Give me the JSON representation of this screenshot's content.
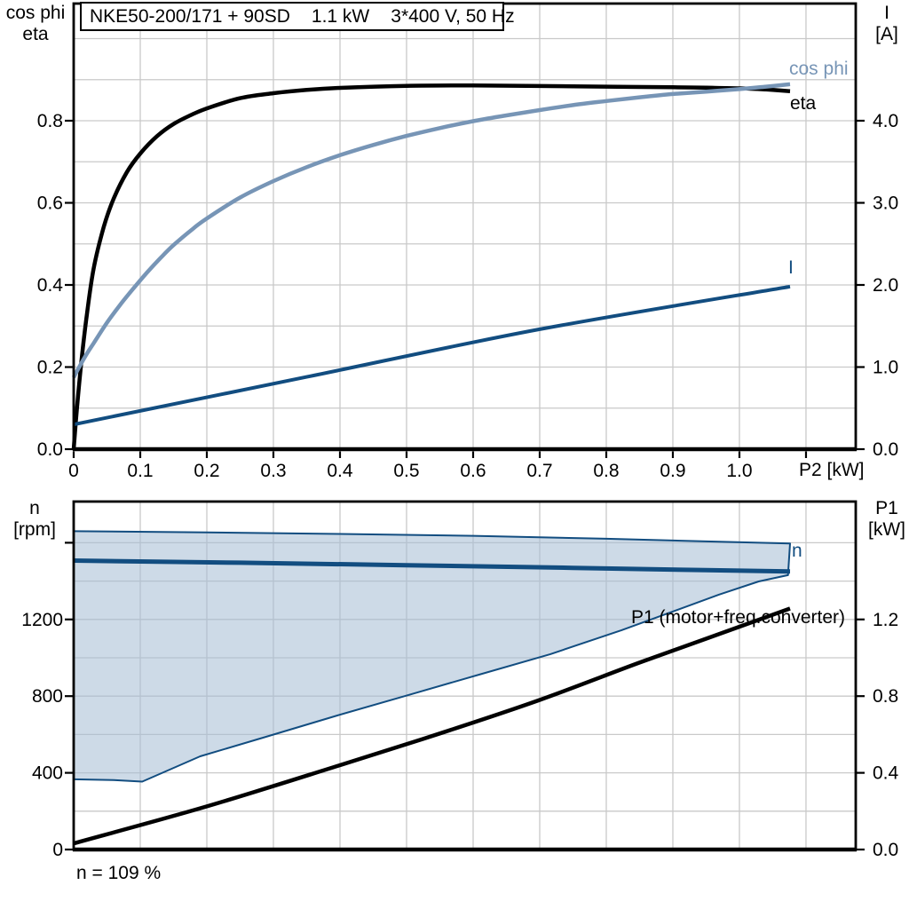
{
  "colors": {
    "black": "#000000",
    "light_blue": "#7795b6",
    "dark_blue": "#124d80",
    "area_fill": "rgba(164,187,211,0.55)",
    "gridline": "#c9c9c9",
    "background": "#ffffff"
  },
  "title_box": {
    "model": "NKE50-200/171 + 90SD",
    "power": "1.1 kW",
    "supply": "3*400 V, 50 Hz"
  },
  "axis_labels": {
    "top_left_line1": "cos phi",
    "top_left_line2": "eta",
    "top_right_line1": "I",
    "top_right_line2": "[A]",
    "top_x": "P2 [kW]",
    "bottom_left_line1": "n",
    "bottom_left_line2": "[rpm]",
    "bottom_right_line1": "P1",
    "bottom_right_line2": "[kW]"
  },
  "curve_labels": {
    "cos_phi": "cos phi",
    "eta": "eta",
    "current": "I",
    "speed": "n",
    "p1": "P1 (motor+freq.converter)"
  },
  "footnote": "n = 109 %",
  "chart_data": [
    {
      "type": "line",
      "title": "NKE50-200/171 + 90SD 1.1 kW 3*400 V, 50 Hz",
      "xlabel": "P2 [kW]",
      "ylabel_left": "cos phi / eta",
      "ylabel_right": "I [A]",
      "xlim": [
        0,
        1.175
      ],
      "ylim_left": [
        0,
        1.085
      ],
      "ylim_right": [
        0,
        5.43
      ],
      "grid": true,
      "x_ticks": [
        {
          "v": 0,
          "label": "0"
        },
        {
          "v": 0.1,
          "label": "0.1"
        },
        {
          "v": 0.2,
          "label": "0.2"
        },
        {
          "v": 0.3,
          "label": "0.3"
        },
        {
          "v": 0.4,
          "label": "0.4"
        },
        {
          "v": 0.5,
          "label": "0.5"
        },
        {
          "v": 0.6,
          "label": "0.6"
        },
        {
          "v": 0.7,
          "label": "0.7"
        },
        {
          "v": 0.8,
          "label": "0.8"
        },
        {
          "v": 0.9,
          "label": "0.9"
        },
        {
          "v": 1.0,
          "label": "1.0"
        },
        {
          "v": 1.1,
          "label": ""
        }
      ],
      "y_ticks_left": [
        {
          "v": 0,
          "label": "0.0"
        },
        {
          "v": 0.2,
          "label": "0.2"
        },
        {
          "v": 0.4,
          "label": "0.4"
        },
        {
          "v": 0.6,
          "label": "0.6"
        },
        {
          "v": 0.8,
          "label": "0.8"
        }
      ],
      "y_ticks_right": [
        {
          "v": 0,
          "label": "0.0"
        },
        {
          "v": 1,
          "label": "1.0"
        },
        {
          "v": 2,
          "label": "2.0"
        },
        {
          "v": 3,
          "label": "3.0"
        },
        {
          "v": 4,
          "label": "4.0"
        }
      ],
      "grid_v": [
        0.1,
        0.2,
        0.3,
        0.4,
        0.5,
        0.6,
        0.7,
        0.8,
        0.9,
        1.0,
        1.1
      ],
      "grid_h": [
        0.1,
        0.2,
        0.3,
        0.4,
        0.5,
        0.6,
        0.7,
        0.8,
        0.9,
        1.0
      ],
      "series": [
        {
          "name": "eta",
          "axis": "left",
          "color": "black",
          "width": 4.5,
          "smooth": true,
          "points": [
            [
              0,
              0
            ],
            [
              0.005,
              0.1
            ],
            [
              0.012,
              0.22
            ],
            [
              0.02,
              0.33
            ],
            [
              0.03,
              0.44
            ],
            [
              0.045,
              0.54
            ],
            [
              0.06,
              0.61
            ],
            [
              0.08,
              0.675
            ],
            [
              0.1,
              0.72
            ],
            [
              0.125,
              0.762
            ],
            [
              0.15,
              0.792
            ],
            [
              0.175,
              0.813
            ],
            [
              0.2,
              0.83
            ],
            [
              0.25,
              0.855
            ],
            [
              0.3,
              0.867
            ],
            [
              0.35,
              0.875
            ],
            [
              0.4,
              0.88
            ],
            [
              0.5,
              0.885
            ],
            [
              0.6,
              0.886
            ],
            [
              0.7,
              0.8845
            ],
            [
              0.8,
              0.883
            ],
            [
              0.9,
              0.8815
            ],
            [
              0.95,
              0.8805
            ],
            [
              1.0,
              0.879
            ],
            [
              1.04,
              0.876
            ],
            [
              1.076,
              0.872
            ]
          ]
        },
        {
          "name": "cos phi",
          "axis": "left",
          "color": "light_blue",
          "width": 4.5,
          "smooth": true,
          "points": [
            [
              0,
              0.175
            ],
            [
              0.01,
              0.205
            ],
            [
              0.02,
              0.233
            ],
            [
              0.03,
              0.258
            ],
            [
              0.05,
              0.308
            ],
            [
              0.07,
              0.352
            ],
            [
              0.09,
              0.392
            ],
            [
              0.11,
              0.43
            ],
            [
              0.13,
              0.465
            ],
            [
              0.15,
              0.497
            ],
            [
              0.18,
              0.538
            ],
            [
              0.2,
              0.562
            ],
            [
              0.25,
              0.613
            ],
            [
              0.3,
              0.653
            ],
            [
              0.35,
              0.687
            ],
            [
              0.4,
              0.716
            ],
            [
              0.45,
              0.741
            ],
            [
              0.5,
              0.763
            ],
            [
              0.55,
              0.782
            ],
            [
              0.6,
              0.799
            ],
            [
              0.65,
              0.813
            ],
            [
              0.7,
              0.826
            ],
            [
              0.75,
              0.838
            ],
            [
              0.8,
              0.848
            ],
            [
              0.85,
              0.857
            ],
            [
              0.9,
              0.865
            ],
            [
              0.95,
              0.871
            ],
            [
              1.0,
              0.877
            ],
            [
              1.04,
              0.883
            ],
            [
              1.076,
              0.889
            ]
          ]
        },
        {
          "name": "I",
          "axis": "right",
          "color": "dark_blue",
          "width": 4,
          "smooth": true,
          "points": [
            [
              0,
              0.3
            ],
            [
              0.35,
              0.88
            ],
            [
              0.7,
              1.46
            ],
            [
              1.076,
              1.98
            ]
          ]
        }
      ]
    },
    {
      "type": "line",
      "title": "",
      "xlabel": "",
      "ylabel_left": "n [rpm]",
      "ylabel_right": "P1 [kW]",
      "xlim": [
        0,
        1.175
      ],
      "ylim_left": [
        0,
        1815
      ],
      "ylim_right": [
        0,
        1.815
      ],
      "grid": true,
      "x_ticks": [],
      "y_ticks_left": [
        {
          "v": 0,
          "label": "0"
        },
        {
          "v": 400,
          "label": "400"
        },
        {
          "v": 800,
          "label": "800"
        },
        {
          "v": 1200,
          "label": "1200"
        },
        {
          "v": 1600,
          "label": ""
        }
      ],
      "y_ticks_right": [
        {
          "v": 0,
          "label": "0.0"
        },
        {
          "v": 0.4,
          "label": "0.4"
        },
        {
          "v": 0.8,
          "label": "0.8"
        },
        {
          "v": 1.2,
          "label": "1.2"
        }
      ],
      "grid_v": [
        0.1,
        0.2,
        0.3,
        0.4,
        0.5,
        0.6,
        0.7,
        0.8,
        0.9,
        1.0,
        1.1
      ],
      "grid_h": [
        200,
        400,
        600,
        800,
        1000,
        1200,
        1400,
        1600
      ],
      "area": {
        "name": "speed-operating-range",
        "fill": "area_fill",
        "border_color": "dark_blue",
        "border_width": 2,
        "upper": [
          [
            0,
            1660
          ],
          [
            0.2,
            1654
          ],
          [
            0.4,
            1646
          ],
          [
            0.6,
            1636
          ],
          [
            0.8,
            1621
          ],
          [
            0.95,
            1607
          ],
          [
            1.076,
            1596
          ]
        ],
        "lower": [
          [
            0,
            366
          ],
          [
            0.06,
            362
          ],
          [
            0.103,
            354
          ],
          [
            0.19,
            486
          ],
          [
            0.289,
            588
          ],
          [
            0.396,
            699
          ],
          [
            0.503,
            806
          ],
          [
            0.609,
            912
          ],
          [
            0.716,
            1019
          ],
          [
            0.823,
            1144
          ],
          [
            0.903,
            1245
          ],
          [
            0.969,
            1329
          ],
          [
            1.029,
            1398
          ],
          [
            1.073,
            1431
          ]
        ]
      },
      "series": [
        {
          "name": "n",
          "axis": "left",
          "color": "dark_blue",
          "width": 5,
          "smooth": false,
          "points": [
            [
              0,
              1507
            ],
            [
              0.25,
              1496
            ],
            [
              0.5,
              1483
            ],
            [
              0.75,
              1469
            ],
            [
              0.95,
              1457
            ],
            [
              1.076,
              1450
            ]
          ]
        },
        {
          "name": "P1 (motor+freq.converter)",
          "axis": "right",
          "color": "black",
          "width": 4.5,
          "smooth": true,
          "points": [
            [
              0,
              0.032
            ],
            [
              0.2,
              0.225
            ],
            [
              0.4,
              0.44
            ],
            [
              0.556,
              0.612
            ],
            [
              0.7,
              0.78
            ],
            [
              0.85,
              0.975
            ],
            [
              0.969,
              1.123
            ],
            [
              1.076,
              1.257
            ]
          ]
        }
      ],
      "annotation": "n = 109 %"
    }
  ]
}
